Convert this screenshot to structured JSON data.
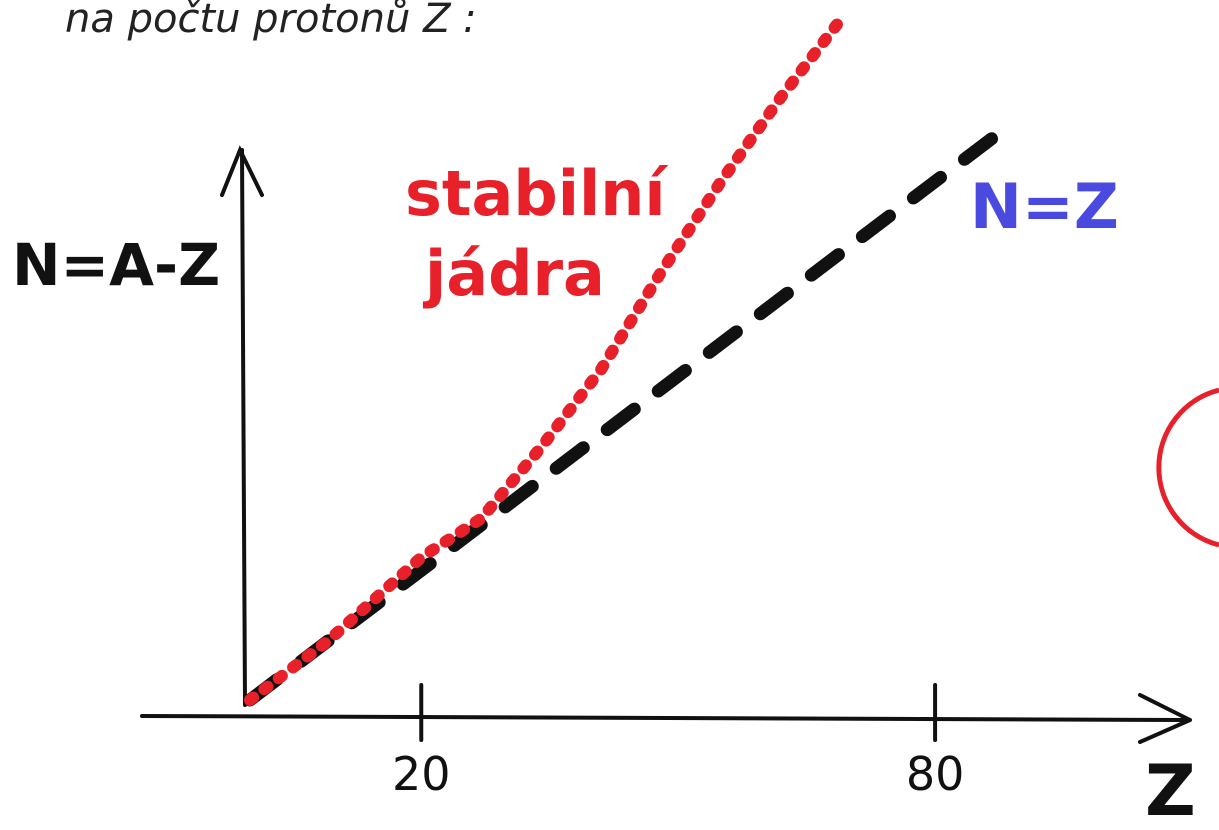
{
  "chart_data": {
    "type": "line",
    "title": "na počtu protonů Z :",
    "x_label": "Z",
    "y_label": "N=A-Z",
    "xlim": [
      0,
      110
    ],
    "ylim": [
      0,
      108
    ],
    "xticks": [
      20,
      80
    ],
    "series": [
      {
        "name": "N=Z",
        "color": "#111111",
        "label_color": "#4a4ae0",
        "style": "dashed",
        "x": [
          0,
          88
        ],
        "values": [
          0,
          88
        ]
      },
      {
        "name": "stabilní jádra",
        "color": "#e8202a",
        "label_color": "#e8202a",
        "style": "dotted",
        "x": [
          0,
          9,
          20,
          27,
          34,
          41,
          48,
          55,
          62,
          69
        ],
        "values": [
          0,
          9,
          22,
          28,
          39,
          51,
          66,
          80,
          93,
          105
        ]
      }
    ]
  }
}
